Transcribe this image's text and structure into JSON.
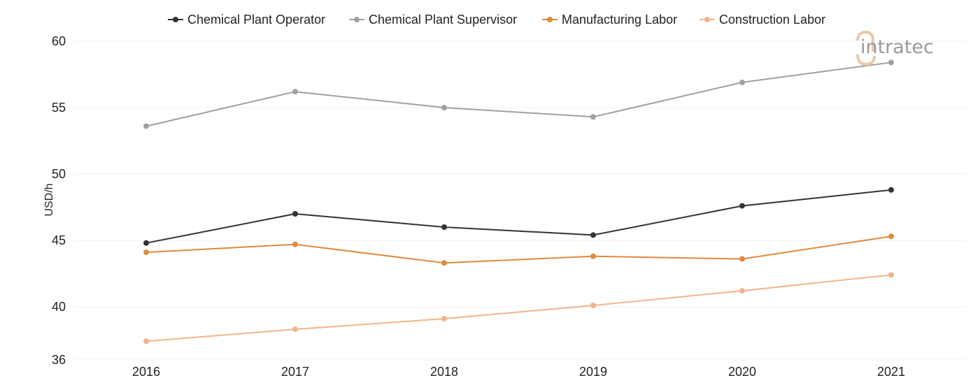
{
  "chart_data": {
    "type": "line",
    "title": "",
    "xlabel": "",
    "ylabel": "USD/h",
    "categories": [
      "2016",
      "2017",
      "2018",
      "2019",
      "2020",
      "2021"
    ],
    "ylim": [
      36,
      60
    ],
    "yticks": [
      36,
      40,
      45,
      50,
      55,
      60
    ],
    "grid": true,
    "legend": "top-center",
    "series": [
      {
        "name": "Chemical Plant Operator",
        "color": "#333333",
        "values": [
          44.8,
          47.0,
          46.0,
          45.4,
          47.6,
          48.8
        ]
      },
      {
        "name": "Chemical Plant Supervisor",
        "color": "#a0a0a0",
        "values": [
          53.6,
          56.2,
          55.0,
          54.3,
          56.9,
          58.4
        ]
      },
      {
        "name": "Manufacturing Labor",
        "color": "#e08a3c",
        "values": [
          44.1,
          44.7,
          43.3,
          43.8,
          43.6,
          45.3
        ]
      },
      {
        "name": "Construction Labor",
        "color": "#f0b48a",
        "values": [
          37.4,
          38.3,
          39.1,
          40.1,
          41.2,
          42.4
        ]
      }
    ]
  },
  "watermark": {
    "text": "intratec"
  }
}
